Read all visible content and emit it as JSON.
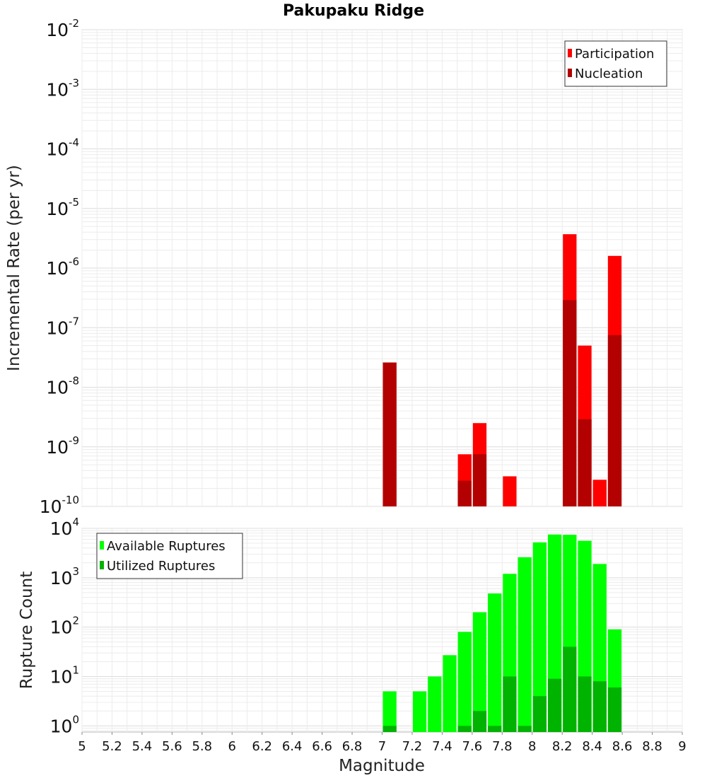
{
  "chart_data": [
    {
      "type": "bar",
      "title": "Pakupaku Ridge",
      "ylabel": "Incremental Rate (per yr)",
      "yscale": "log",
      "ylim": [
        1e-10,
        0.01
      ],
      "xlim": [
        5,
        9
      ],
      "grid": true,
      "legend_position": "top-right",
      "ytick_exponents": [
        "-10",
        "-9",
        "-8",
        "-7",
        "-6",
        "-5",
        "-4",
        "-3",
        "-2"
      ],
      "ytick_base": "10",
      "x": [
        7.05,
        7.55,
        7.65,
        7.85,
        8.25,
        8.35,
        8.45,
        8.55
      ],
      "series": [
        {
          "name": "Participation",
          "color": "#ff0000",
          "values": [
            2.6e-08,
            7.5e-10,
            2.5e-09,
            3.2e-10,
            3.7e-06,
            5e-08,
            2.8e-10,
            1.6e-06
          ]
        },
        {
          "name": "Nucleation",
          "color": "#b30000",
          "values": [
            2.6e-08,
            2.7e-10,
            7.5e-10,
            null,
            2.9e-07,
            2.9e-09,
            null,
            7.5e-08
          ]
        }
      ]
    },
    {
      "type": "bar",
      "xlabel": "Magnitude",
      "ylabel": "Rupture Count",
      "yscale": "log",
      "ylim": [
        0.75,
        10000
      ],
      "xlim": [
        5,
        9
      ],
      "grid": true,
      "legend_position": "top-left",
      "ytick_exponents": [
        "0",
        "1",
        "2",
        "3",
        "4"
      ],
      "ytick_base": "10",
      "xticks": [
        "5",
        "5.2",
        "5.4",
        "5.6",
        "5.8",
        "6",
        "6.2",
        "6.4",
        "6.6",
        "6.8",
        "7",
        "7.2",
        "7.4",
        "7.6",
        "7.8",
        "8",
        "8.2",
        "8.4",
        "8.6",
        "8.8",
        "9"
      ],
      "x": [
        7.05,
        7.25,
        7.35,
        7.45,
        7.55,
        7.65,
        7.75,
        7.85,
        7.95,
        8.05,
        8.15,
        8.25,
        8.35,
        8.45,
        8.55
      ],
      "series": [
        {
          "name": "Available Ruptures",
          "color": "#00ff00",
          "values": [
            5,
            5,
            10,
            27,
            80,
            200,
            480,
            1200,
            2600,
            5200,
            7500,
            7400,
            5600,
            1900,
            90
          ]
        },
        {
          "name": "Utilized Ruptures",
          "color": "#00b300",
          "values": [
            1,
            null,
            null,
            null,
            1,
            2,
            1,
            10,
            1,
            4,
            9,
            40,
            10,
            8,
            6
          ]
        }
      ]
    }
  ]
}
